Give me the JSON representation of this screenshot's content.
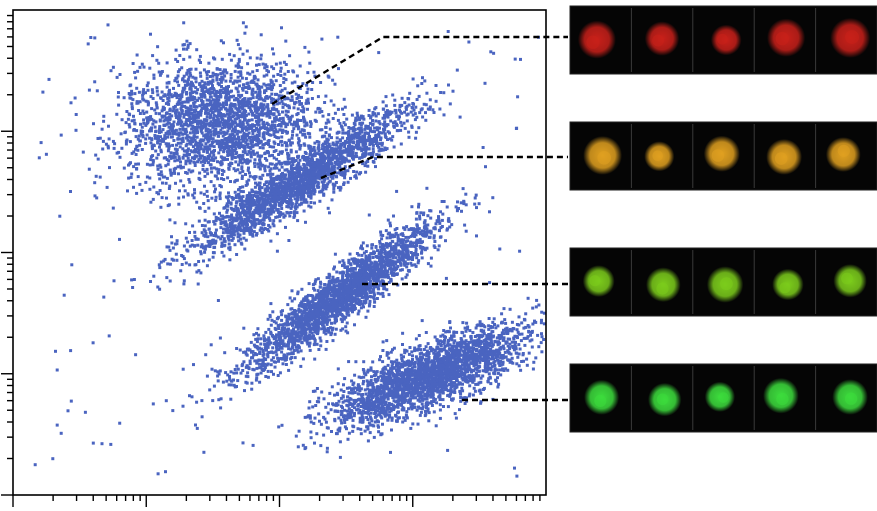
{
  "chart_data": {
    "type": "scatter",
    "title": "",
    "xlabel": "",
    "ylabel": "",
    "x_scale": "log",
    "y_scale": "log",
    "xlim": [
      1,
      10000
    ],
    "ylim": [
      0.1,
      1000
    ],
    "grid": false,
    "legend": "none",
    "point_color": "#4a64c0",
    "populations": [
      {
        "cell_color": "#c8201a",
        "cells_shown": 5,
        "center": [
          35,
          120
        ],
        "spread": [
          0.36,
          0.26
        ],
        "tilt": 0.15,
        "count": 2300
      },
      {
        "cell_color": "#e0a020",
        "cells_shown": 5,
        "center": [
          140,
          40
        ],
        "spread": [
          0.5,
          0.09
        ],
        "tilt": 0.72,
        "count": 2100
      },
      {
        "cell_color": "#7ccc1c",
        "cells_shown": 5,
        "center": [
          280,
          4.5
        ],
        "spread": [
          0.46,
          0.09
        ],
        "tilt": 0.85,
        "count": 2300
      },
      {
        "cell_color": "#3ddc3d",
        "cells_shown": 5,
        "center": [
          1300,
          1.0
        ],
        "spread": [
          0.4,
          0.12
        ],
        "tilt": 0.48,
        "count": 2500
      }
    ]
  }
}
